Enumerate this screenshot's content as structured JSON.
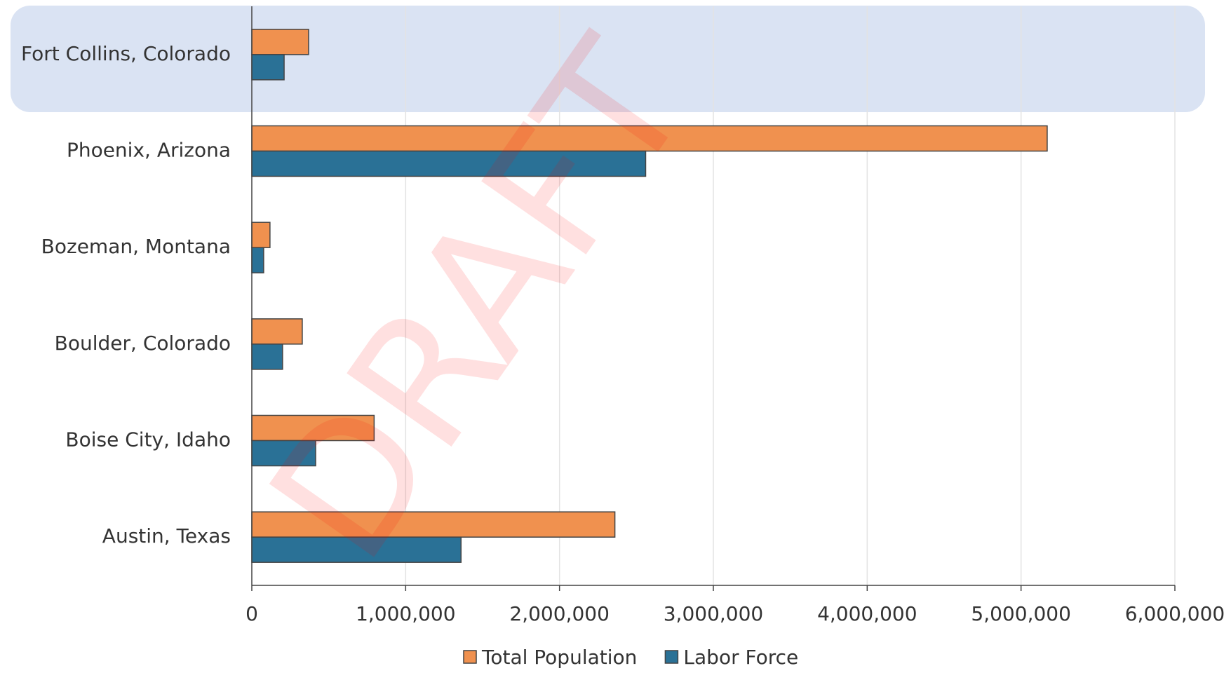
{
  "chart_data": {
    "type": "barh",
    "categories": [
      "Fort Collins, Colorado",
      "Phoenix, Arizona",
      "Bozeman, Montana",
      "Boulder, Colorado",
      "Boise City, Idaho",
      "Austin, Texas"
    ],
    "series": [
      {
        "name": "Total Population",
        "color": "#f0914f",
        "values": [
          369000,
          5170000,
          118000,
          328000,
          795000,
          2360000
        ]
      },
      {
        "name": "Labor Force",
        "color": "#2a7196",
        "values": [
          210000,
          2560000,
          77000,
          200000,
          415000,
          1360000
        ]
      }
    ],
    "xlim": [
      0,
      6000000
    ],
    "xticks": [
      0,
      {
        "value": 1000000,
        "label": "1,000,000"
      },
      {
        "value": 2000000,
        "label": "2,000,000"
      },
      {
        "value": 3000000,
        "label": "3,000,000"
      },
      {
        "value": 4000000,
        "label": "4,000,000"
      },
      {
        "value": 5000000,
        "label": "5,000,000"
      },
      {
        "value": 6000000,
        "label": "6,000,000"
      }
    ],
    "grid": true,
    "legend": "bottom",
    "watermark": "DRAFT"
  }
}
